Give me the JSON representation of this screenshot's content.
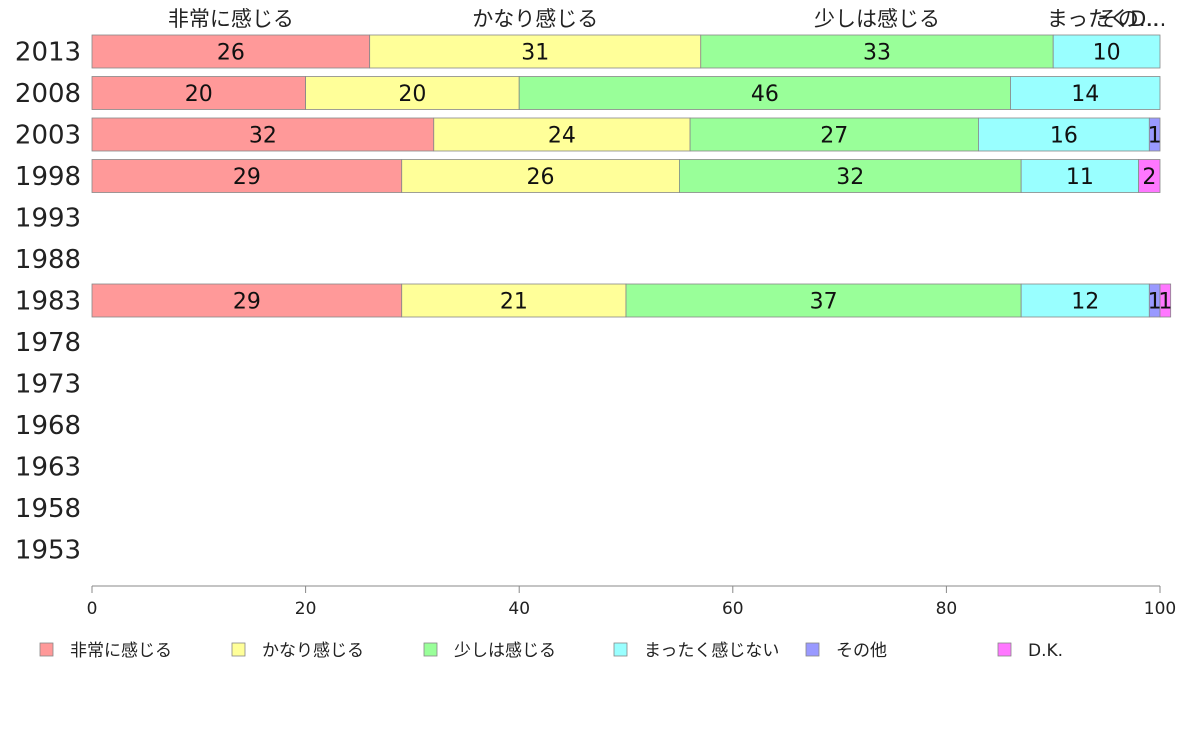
{
  "chart_data": {
    "type": "bar",
    "orientation": "horizontal",
    "stacked": true,
    "categories": [
      "2013",
      "2008",
      "2003",
      "1998",
      "1993",
      "1988",
      "1983",
      "1978",
      "1973",
      "1968",
      "1963",
      "1958",
      "1953"
    ],
    "series": [
      {
        "name": "非常に感じる",
        "color": "#ff9999",
        "values": [
          26,
          20,
          32,
          29,
          null,
          null,
          29,
          null,
          null,
          null,
          null,
          null,
          null
        ]
      },
      {
        "name": "かなり感じる",
        "color": "#ffff99",
        "values": [
          31,
          20,
          24,
          26,
          null,
          null,
          21,
          null,
          null,
          null,
          null,
          null,
          null
        ]
      },
      {
        "name": "少しは感じる",
        "color": "#99ff99",
        "values": [
          33,
          46,
          27,
          32,
          null,
          null,
          37,
          null,
          null,
          null,
          null,
          null,
          null
        ]
      },
      {
        "name": "まったく感じない",
        "color": "#99ffff",
        "values": [
          10,
          14,
          16,
          11,
          null,
          null,
          12,
          null,
          null,
          null,
          null,
          null,
          null
        ]
      },
      {
        "name": "その他",
        "color": "#9999ff",
        "values": [
          0,
          0,
          1,
          0,
          null,
          null,
          1,
          null,
          null,
          null,
          null,
          null,
          null
        ]
      },
      {
        "name": "D.K.",
        "color": "#ff77ff",
        "values": [
          0,
          0,
          0,
          2,
          null,
          null,
          1,
          null,
          null,
          null,
          null,
          null,
          null
        ]
      }
    ],
    "top_labels": [
      "非常に感じる",
      "かなり感じる",
      "少しは感じる",
      "まったくD...",
      "その..."
    ],
    "xlim": [
      0,
      100
    ],
    "x_ticks": [
      0,
      20,
      40,
      60,
      80,
      100
    ],
    "grid": false,
    "legend_position": "bottom"
  }
}
